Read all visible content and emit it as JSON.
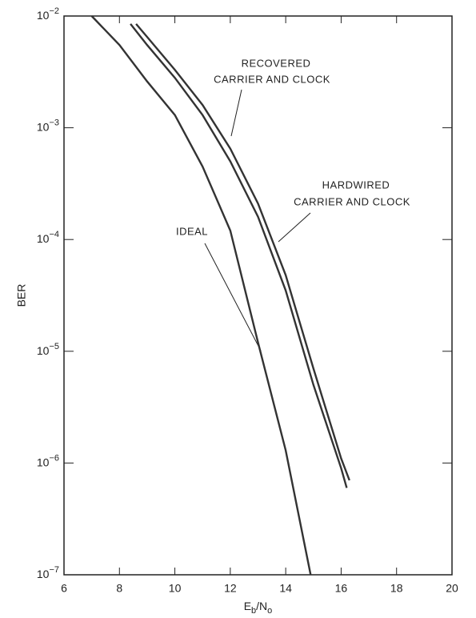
{
  "chart_data": {
    "type": "line",
    "x_label": "Eb/No",
    "y_label": "BER",
    "xlim": [
      6,
      20
    ],
    "xticks": [
      6,
      8,
      10,
      12,
      14,
      16,
      18,
      20
    ],
    "ylim": [
      1e-07,
      0.01
    ],
    "log_y": true,
    "yticks": [
      {
        "value": 1e-07,
        "label": "10−7"
      },
      {
        "value": 1e-06,
        "label": "10−6"
      },
      {
        "value": 1e-05,
        "label": "10−5"
      },
      {
        "value": 0.0001,
        "label": "10−4"
      },
      {
        "value": 0.001,
        "label": "10−3"
      },
      {
        "value": 0.01,
        "label": "10−2"
      }
    ],
    "series": [
      {
        "name": "IDEAL",
        "color": "#333333",
        "x": [
          7.0,
          8,
          9,
          10,
          11,
          12,
          13,
          14,
          14.9
        ],
        "values": [
          0.01,
          0.0055,
          0.0026,
          0.0013,
          0.00045,
          0.00012,
          1.2e-05,
          1.3e-06,
          1e-07
        ]
      },
      {
        "name": "HARDWIRED CARRIER AND CLOCK",
        "color": "#333333",
        "x": [
          8.4,
          9,
          10,
          11,
          12,
          13,
          14,
          15,
          16,
          16.2
        ],
        "values": [
          0.0085,
          0.0055,
          0.0028,
          0.0013,
          0.0005,
          0.00016,
          3.5e-05,
          5e-06,
          9e-07,
          6e-07
        ]
      },
      {
        "name": "RECOVERED CARRIER AND CLOCK",
        "color": "#333333",
        "x": [
          8.6,
          9,
          10,
          11,
          12,
          13,
          14,
          15,
          16,
          16.3
        ],
        "values": [
          0.0085,
          0.0065,
          0.0033,
          0.0016,
          0.00065,
          0.00021,
          4.8e-05,
          7e-06,
          1.1e-06,
          7e-07
        ]
      }
    ],
    "annotations": [
      {
        "lines": [
          "RECOVERED",
          "CARRIER AND CLOCK"
        ]
      },
      {
        "lines": [
          "HARDWIRED",
          "CARRIER AND CLOCK"
        ]
      },
      {
        "lines": [
          "IDEAL"
        ]
      }
    ]
  }
}
